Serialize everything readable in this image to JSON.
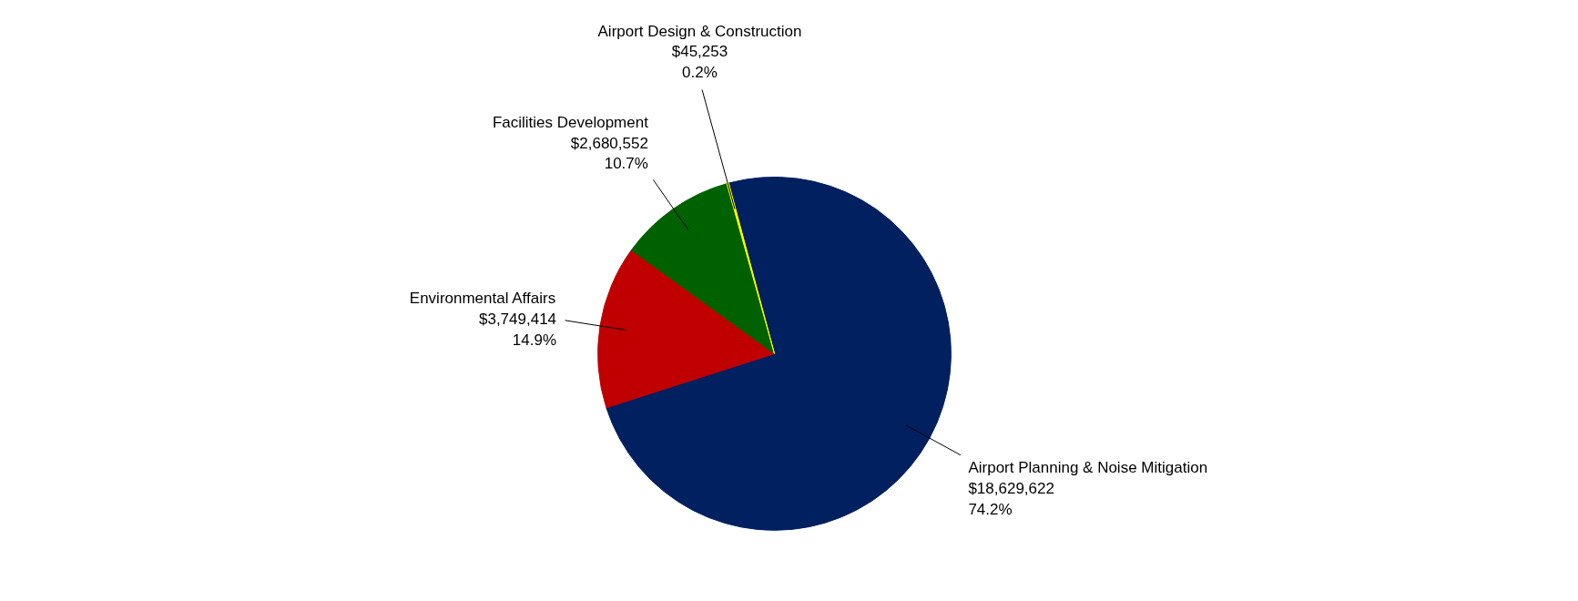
{
  "chart_data": {
    "type": "pie",
    "categories": [
      "Airport Planning & Noise Mitigation",
      "Environmental Affairs",
      "Facilities Development",
      "Airport Design & Construction"
    ],
    "values": [
      18629622,
      3749414,
      2680552,
      45253
    ],
    "colors": [
      "#002060",
      "#c00000",
      "#006100",
      "#ffff00"
    ],
    "value_labels": [
      "$18,629,622\n74.2%",
      "$3,749,414\n14.9%",
      "$2,680,552\n10.7%",
      "$45,253\n0.2%"
    ]
  }
}
